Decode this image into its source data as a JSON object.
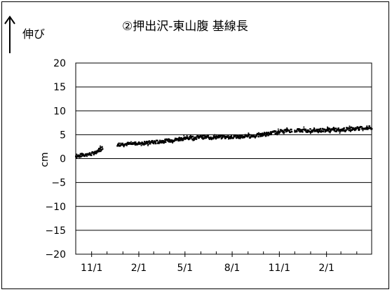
{
  "chart_data": {
    "type": "scatter",
    "title": "②押出沢-東山腹 基線長",
    "direction_label": "伸び",
    "ylabel": "cm",
    "xlabel": "",
    "ylim": [
      -20,
      20
    ],
    "yticks": [
      20,
      15,
      10,
      5,
      0,
      -5,
      -10,
      -15,
      -20
    ],
    "x_tick_labels": [
      "11/1",
      "2/1",
      "5/1",
      "8/1",
      "11/1",
      "2/1"
    ],
    "x_range": [
      "2011-10-01",
      "2013-04-30"
    ],
    "x_ticks": [
      "2011-11-01",
      "2012-02-01",
      "2012-05-01",
      "2012-08-01",
      "2012-11-01",
      "2013-02-01"
    ],
    "grid": true,
    "legend": "none",
    "marker_color": "#000000",
    "series": [
      {
        "segments": [
          [
            [
              "2011-10-01",
              0.5
            ],
            [
              "2011-10-15",
              0.8
            ],
            [
              "2011-11-01",
              1.0
            ],
            [
              "2011-11-10",
              1.5
            ],
            [
              "2011-11-22",
              2.3
            ]
          ],
          [
            [
              "2011-12-21",
              3.0
            ],
            [
              "2012-01-15",
              3.1
            ],
            [
              "2012-02-15",
              3.3
            ],
            [
              "2012-03-15",
              3.6
            ],
            [
              "2012-04-15",
              4.0
            ],
            [
              "2012-05-01",
              4.3
            ],
            [
              "2012-06-01",
              4.5
            ],
            [
              "2012-07-01",
              4.5
            ],
            [
              "2012-08-01",
              4.6
            ],
            [
              "2012-09-01",
              4.7
            ],
            [
              "2012-10-01",
              5.0
            ],
            [
              "2012-10-20",
              5.4
            ],
            [
              "2012-11-05",
              5.8
            ],
            [
              "2012-11-25",
              5.9
            ]
          ],
          [
            [
              "2012-12-01",
              5.9
            ],
            [
              "2013-01-01",
              5.9
            ],
            [
              "2013-02-01",
              6.0
            ],
            [
              "2013-03-01",
              6.1
            ],
            [
              "2013-04-01",
              6.3
            ],
            [
              "2013-04-30",
              6.5
            ]
          ]
        ]
      }
    ]
  }
}
